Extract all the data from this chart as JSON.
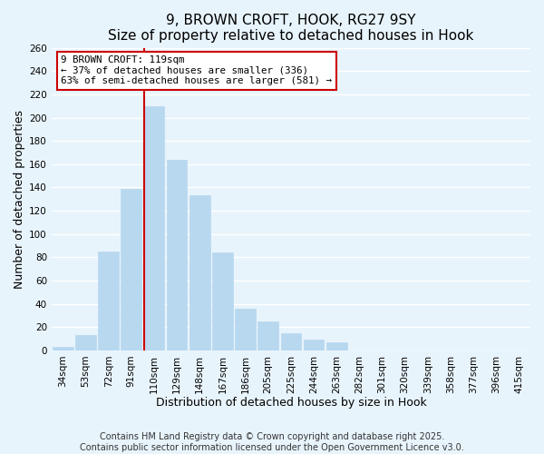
{
  "title": "9, BROWN CROFT, HOOK, RG27 9SY",
  "subtitle": "Size of property relative to detached houses in Hook",
  "xlabel": "Distribution of detached houses by size in Hook",
  "ylabel": "Number of detached properties",
  "categories": [
    "34sqm",
    "53sqm",
    "72sqm",
    "91sqm",
    "110sqm",
    "129sqm",
    "148sqm",
    "167sqm",
    "186sqm",
    "205sqm",
    "225sqm",
    "244sqm",
    "263sqm",
    "282sqm",
    "301sqm",
    "320sqm",
    "339sqm",
    "358sqm",
    "377sqm",
    "396sqm",
    "415sqm"
  ],
  "values": [
    3,
    13,
    85,
    139,
    210,
    164,
    133,
    84,
    36,
    25,
    15,
    9,
    7,
    0,
    0,
    0,
    0,
    0,
    0,
    0,
    0
  ],
  "bar_color": "#b8d8f0",
  "bar_edge_color": "#b8d8f0",
  "vline_x_index": 4,
  "vline_color": "#cc0000",
  "annotation_title": "9 BROWN CROFT: 119sqm",
  "annotation_line1": "← 37% of detached houses are smaller (336)",
  "annotation_line2": "63% of semi-detached houses are larger (581) →",
  "annotation_box_color": "white",
  "annotation_box_edge_color": "#cc0000",
  "ylim": [
    0,
    260
  ],
  "yticks": [
    0,
    20,
    40,
    60,
    80,
    100,
    120,
    140,
    160,
    180,
    200,
    220,
    240,
    260
  ],
  "footer1": "Contains HM Land Registry data © Crown copyright and database right 2025.",
  "footer2": "Contains public sector information licensed under the Open Government Licence v3.0.",
  "bg_color": "#e8f4fc",
  "grid_color": "white",
  "title_fontsize": 11,
  "subtitle_fontsize": 10,
  "xlabel_fontsize": 9,
  "ylabel_fontsize": 9,
  "tick_fontsize": 7.5,
  "footer_fontsize": 7
}
